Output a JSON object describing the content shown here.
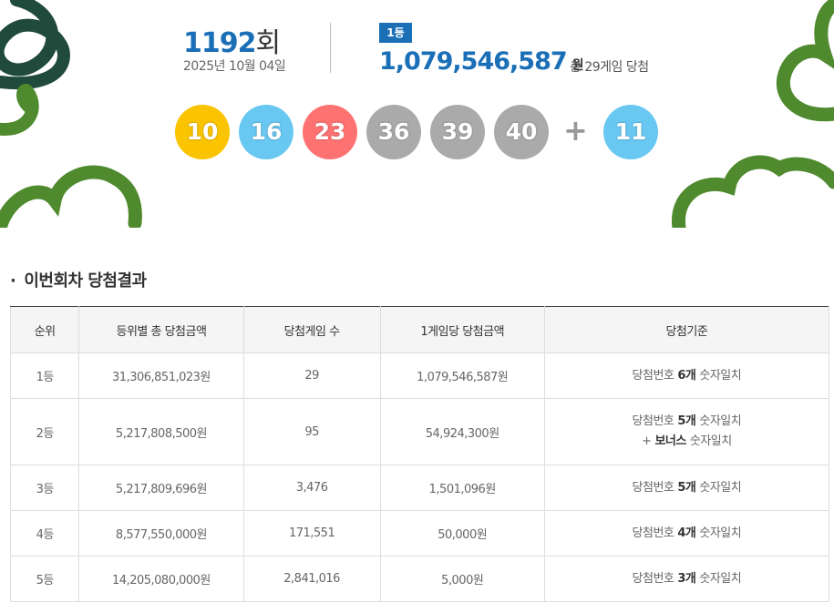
{
  "header": {
    "round": "1192",
    "round_suffix": "회",
    "date": "2025년 10월 04일",
    "rank_badge": "1등",
    "first_prize": "1,079,546,587",
    "first_prize_unit": "원",
    "winners": "총 29게임 당첨"
  },
  "balls": [
    {
      "number": 10,
      "color": "#fbc400"
    },
    {
      "number": 16,
      "color": "#69c8f2"
    },
    {
      "number": 23,
      "color": "#ff7272"
    },
    {
      "number": 36,
      "color": "#aaaaaa"
    },
    {
      "number": 39,
      "color": "#aaaaaa"
    },
    {
      "number": 40,
      "color": "#aaaaaa"
    }
  ],
  "plus": "+",
  "bonus": {
    "number": 11,
    "color": "#69c8f2"
  },
  "section_title": "이번회차 당첨결과",
  "table": {
    "columns": [
      "순위",
      "등위별 총 당첨금액",
      "당첨게임 수",
      "1게임당 당첨금액",
      "당첨기준"
    ],
    "rows": [
      {
        "rank": "1등",
        "total": "31,306,851,023원",
        "count": "29",
        "per_game": "1,079,546,587원",
        "criteria": [
          [
            {
              "text": "당첨번호"
            },
            {
              "text": "6개",
              "bold": true
            },
            {
              "text": "숫자일치"
            }
          ]
        ]
      },
      {
        "rank": "2등",
        "total": "5,217,808,500원",
        "count": "95",
        "per_game": "54,924,300원",
        "criteria": [
          [
            {
              "text": "당첨번호"
            },
            {
              "text": "5개",
              "bold": true
            },
            {
              "text": "숫자일치"
            }
          ],
          [
            {
              "text": "+"
            },
            {
              "text": "보너스",
              "bold": true
            },
            {
              "text": "숫자일치"
            }
          ]
        ]
      },
      {
        "rank": "3등",
        "total": "5,217,809,696원",
        "count": "3,476",
        "per_game": "1,501,096원",
        "criteria": [
          [
            {
              "text": "당첨번호"
            },
            {
              "text": "5개",
              "bold": true
            },
            {
              "text": "숫자일치"
            }
          ]
        ]
      },
      {
        "rank": "4등",
        "total": "8,577,550,000원",
        "count": "171,551",
        "per_game": "50,000원",
        "criteria": [
          [
            {
              "text": "당첨번호"
            },
            {
              "text": "4개",
              "bold": true
            },
            {
              "text": "숫자일치"
            }
          ]
        ]
      },
      {
        "rank": "5등",
        "total": "14,205,080,000원",
        "count": "2,841,016",
        "per_game": "5,000원",
        "criteria": [
          [
            {
              "text": "당첨번호"
            },
            {
              "text": "3개",
              "bold": true
            },
            {
              "text": "숫자일치"
            }
          ]
        ]
      }
    ]
  }
}
